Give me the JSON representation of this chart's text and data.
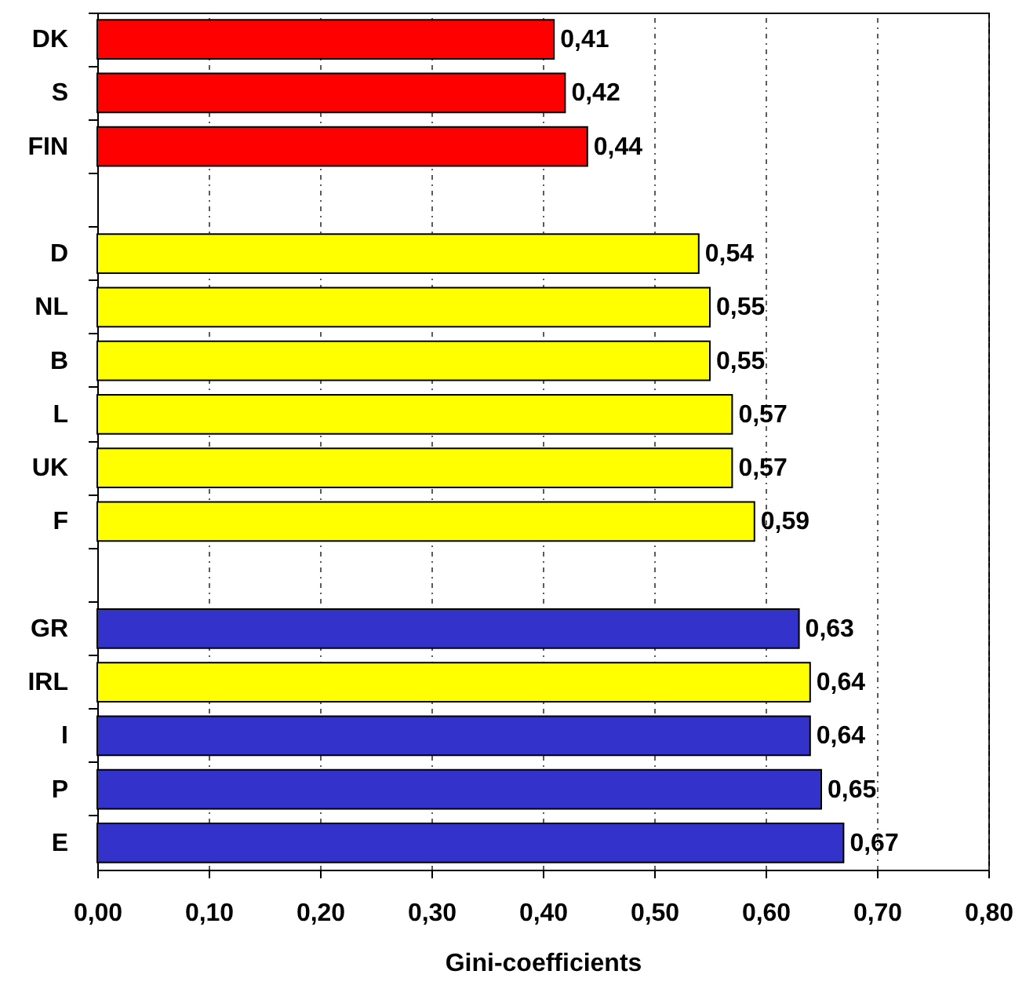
{
  "chart_data": {
    "type": "bar",
    "orientation": "horizontal",
    "xlabel": "Gini-coefficients",
    "categories": [
      "DK",
      "S",
      "FIN",
      null,
      "D",
      "NL",
      "B",
      "L",
      "UK",
      "F",
      null,
      "GR",
      "IRL",
      "I",
      "P",
      "E"
    ],
    "values": [
      0.41,
      0.42,
      0.44,
      null,
      0.54,
      0.55,
      0.55,
      0.57,
      0.57,
      0.59,
      null,
      0.63,
      0.64,
      0.64,
      0.65,
      0.67
    ],
    "colors": [
      "#ff0000",
      "#ff0000",
      "#ff0000",
      null,
      "#ffff00",
      "#ffff00",
      "#ffff00",
      "#ffff00",
      "#ffff00",
      "#ffff00",
      null,
      "#3333cc",
      "#ffff00",
      "#3333cc",
      "#3333cc",
      "#3333cc"
    ],
    "value_labels": [
      "0,41",
      "0,42",
      "0,44",
      null,
      "0,54",
      "0,55",
      "0,55",
      "0,57",
      "0,57",
      "0,59",
      null,
      "0,63",
      "0,64",
      "0,64",
      "0,65",
      "0,67"
    ],
    "xlim": [
      0,
      0.8
    ],
    "xticks": [
      {
        "value": 0,
        "label": "0,00"
      },
      {
        "value": 0.1,
        "label": "0,10"
      },
      {
        "value": 0.2,
        "label": "0,20"
      },
      {
        "value": 0.3,
        "label": "0,30"
      },
      {
        "value": 0.4,
        "label": "0,40"
      },
      {
        "value": 0.5,
        "label": "0,50"
      },
      {
        "value": 0.6,
        "label": "0,60"
      },
      {
        "value": 0.7,
        "label": "0,70"
      },
      {
        "value": 0.8,
        "label": "0,80"
      }
    ],
    "grid": "x"
  }
}
